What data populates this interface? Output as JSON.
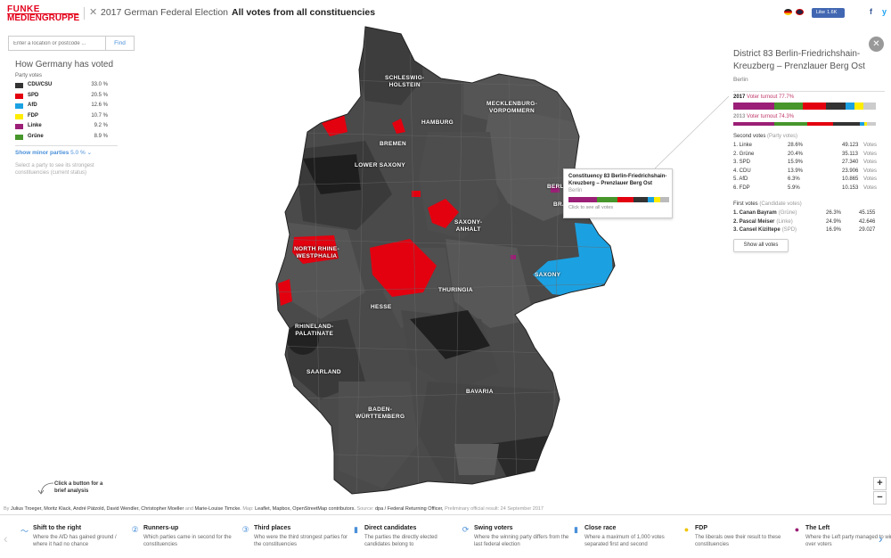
{
  "header": {
    "logo_line1": "FUNKE",
    "logo_line2": "MEDIENGRUPPE",
    "title_light": "2017 German Federal Election",
    "title_bold": "All votes from all constituencies",
    "fb_like_label": "Like",
    "fb_like_count": "1.6K",
    "share_fb": "f",
    "share_tw": "y"
  },
  "search": {
    "placeholder": "Enter a location or postcode ...",
    "find_label": "Find"
  },
  "left_panel": {
    "title": "How Germany has voted",
    "subtitle": "Party votes",
    "parties": [
      {
        "name": "CDU/CSU",
        "pct": "33.0 %",
        "color": "#333333"
      },
      {
        "name": "SPD",
        "pct": "20.5 %",
        "color": "#e3000f"
      },
      {
        "name": "AfD",
        "pct": "12.6 %",
        "color": "#1ba1e2"
      },
      {
        "name": "FDP",
        "pct": "10.7 %",
        "color": "#ffed00"
      },
      {
        "name": "Linke",
        "pct": "9.2 %",
        "color": "#9b1f76"
      },
      {
        "name": "Grüne",
        "pct": "8.9 %",
        "color": "#46962b"
      }
    ],
    "minor_label": "Show minor parties",
    "minor_pct": "5.0 %",
    "hint": "Select a party to see its strongest constituencies (current status)"
  },
  "map_labels": {
    "schleswig": "SCHLESWIG-\nHOLSTEIN",
    "mecklenburg": "MECKLENBURG-\nVORPOMMERN",
    "hamburg": "HAMBURG",
    "bremen": "BREMEN",
    "lower_saxony": "LOWER SAXONY",
    "brandenburg": "BRANDENBURG",
    "berlin": "BERLIN",
    "saxony_anhalt": "SAXONY-\nANHALT",
    "nrw": "NORTH RHINE-\nWESTPHALIA",
    "saxony": "SAXONY",
    "thuringia": "THURINGIA",
    "hesse": "HESSE",
    "rhineland": "RHINELAND-\nPALATINATE",
    "saarland": "SAARLAND",
    "bavaria": "BAVARIA",
    "bw": "BADEN-\nWÜRTTEMBERG"
  },
  "tooltip": {
    "title": "Constituency 83 Berlin-Friedrichshain-Kreuzberg – Prenzlauer Berg Ost",
    "state": "Berlin",
    "hint": "Click to see all votes",
    "bar": [
      {
        "color": "#9b1f76",
        "share": 28.6
      },
      {
        "color": "#46962b",
        "share": 20.4
      },
      {
        "color": "#e3000f",
        "share": 15.9
      },
      {
        "color": "#333333",
        "share": 13.9
      },
      {
        "color": "#1ba1e2",
        "share": 6.3
      },
      {
        "color": "#ffed00",
        "share": 5.9
      },
      {
        "color": "#bbbbbb",
        "share": 9.0
      }
    ]
  },
  "right_panel": {
    "close": "✕",
    "title": "District 83 Berlin-Friedrichshain-Kreuzberg – Prenzlauer Berg Ost",
    "state": "Berlin",
    "turnout_2017_year": "2017",
    "turnout_2017": "Voter turnout 77.7%",
    "turnout_2013_year": "2013",
    "turnout_2013": "Voter turnout 74.3%",
    "second_votes_label": "Second votes",
    "second_votes_sub": "(Party votes)",
    "second_votes": [
      {
        "name": "1. Linke",
        "pct": "28.6%",
        "votes": "49.123",
        "unit": "Votes"
      },
      {
        "name": "2. Grüne",
        "pct": "20.4%",
        "votes": "35.113",
        "unit": "Votes"
      },
      {
        "name": "3. SPD",
        "pct": "15.9%",
        "votes": "27.340",
        "unit": "Votes"
      },
      {
        "name": "4. CDU",
        "pct": "13.9%",
        "votes": "23.906",
        "unit": "Votes"
      },
      {
        "name": "5. AfD",
        "pct": "6.3%",
        "votes": "10.865",
        "unit": "Votes"
      },
      {
        "name": "6. FDP",
        "pct": "5.9%",
        "votes": "10.153",
        "unit": "Votes"
      }
    ],
    "first_votes_label": "First votes",
    "first_votes_sub": "(Candidate votes)",
    "first_votes": [
      {
        "name": "1. Canan Bayram",
        "party": "(Grüne)",
        "pct": "26.3%",
        "votes": "45.155"
      },
      {
        "name": "2. Pascal Meiser",
        "party": "(Linke)",
        "pct": "24.9%",
        "votes": "42.646"
      },
      {
        "name": "3. Cansel Kiziltepe",
        "party": "(SPD)",
        "pct": "16.9%",
        "votes": "29.027"
      }
    ],
    "show_all_label": "Show all votes",
    "bar_2017": [
      {
        "color": "#9b1f76",
        "share": 28.6
      },
      {
        "color": "#46962b",
        "share": 20.4
      },
      {
        "color": "#e3000f",
        "share": 15.9
      },
      {
        "color": "#333333",
        "share": 13.9
      },
      {
        "color": "#1ba1e2",
        "share": 6.3
      },
      {
        "color": "#ffed00",
        "share": 5.9
      },
      {
        "color": "#cccccc",
        "share": 9.0
      }
    ],
    "bar_2013": [
      {
        "color": "#9b1f76",
        "share": 29.0
      },
      {
        "color": "#46962b",
        "share": 23.0
      },
      {
        "color": "#e3000f",
        "share": 18.0
      },
      {
        "color": "#333333",
        "share": 19.0
      },
      {
        "color": "#1ba1e2",
        "share": 3.0
      },
      {
        "color": "#ffed00",
        "share": 2.0
      },
      {
        "color": "#cccccc",
        "share": 6.0
      }
    ]
  },
  "zoom": {
    "in": "+",
    "out": "−"
  },
  "analysis_hint": "Click a button for a\nbrief analysis",
  "credits": {
    "by": "By",
    "authors": "Julius Troeger, Moritz Klack, André Pätzold, David Wendler, Christopher Moeller",
    "and": "and",
    "authors2": "Marie-Louise Timcke.",
    "map_label": "Map:",
    "map_src": "Leaflet, Mapbox, OpenStreetMap contributors.",
    "source_label": "Source:",
    "source": "dpa / Federal Returning Officer,",
    "result": "Preliminary official result: 24 September 2017"
  },
  "bottom_bar": {
    "items": [
      {
        "icon": "〜",
        "title": "Shift to the right",
        "desc": "Where the AfD has gained ground / where it had no chance",
        "color": "#4a90d9"
      },
      {
        "icon": "②",
        "title": "Runners-up",
        "desc": "Which parties came in second for the constituencies",
        "color": "#4a90d9"
      },
      {
        "icon": "③",
        "title": "Third places",
        "desc": "Who were the third strongest parties for the constituencies",
        "color": "#4a90d9"
      },
      {
        "icon": "▮",
        "title": "Direct candidates",
        "desc": "The parties the directly elected candidates belong to",
        "color": "#4a90d9"
      },
      {
        "icon": "⟳",
        "title": "Swing voters",
        "desc": "Where the winning party differs from the last federal election",
        "color": "#4a90d9"
      },
      {
        "icon": "▮",
        "title": "Close race",
        "desc": "Where a maximum of 1,000 votes separated first and second",
        "color": "#4a90d9"
      },
      {
        "icon": "●",
        "title": "FDP",
        "desc": "The liberals owe their result to these constituencies",
        "color": "#f0c400"
      },
      {
        "icon": "●",
        "title": "The Left",
        "desc": "Where the Left party managed to win over voters",
        "color": "#9b1f76"
      }
    ]
  }
}
